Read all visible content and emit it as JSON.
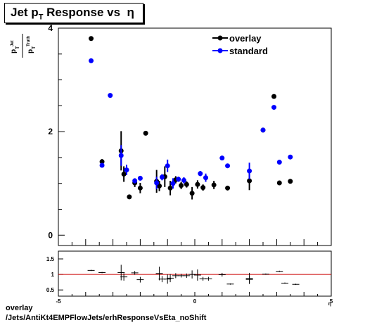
{
  "title": "Jet p_T Response vs η",
  "footer": {
    "line1": "overlay",
    "line2": "/Jets/AntiKt4EMPFlowJets/erhResponseVsEta_noShift"
  },
  "colors": {
    "overlay": "#000000",
    "standard": "#0000ff",
    "ratio_line": "#cc0000"
  },
  "chart_data": [
    {
      "type": "scatter",
      "ylabel": "p_T^Jet / p_T^Truth",
      "xlim": [
        -5,
        5
      ],
      "ylim": [
        -0.2,
        4.0
      ],
      "yticks": [
        0,
        2,
        4
      ],
      "ytick_labels": [
        "0",
        "2",
        "4"
      ],
      "legend_position": "top-right",
      "series": [
        {
          "name": "overlay",
          "color": "#000000",
          "x": [
            -3.8,
            -3.4,
            -2.7,
            -2.6,
            -2.4,
            -2.2,
            -2.0,
            -1.8,
            -1.4,
            -1.3,
            -1.1,
            -0.9,
            -0.7,
            -0.5,
            -0.3,
            -0.1,
            0.1,
            0.3,
            0.7,
            1.2,
            2.0,
            2.5,
            2.9,
            3.1,
            3.5
          ],
          "y": [
            3.8,
            1.42,
            1.63,
            1.18,
            0.74,
            1.01,
            0.91,
            1.97,
            1.04,
            0.95,
            1.13,
            0.91,
            1.07,
            0.96,
            0.98,
            0.81,
            0.98,
            0.92,
            0.97,
            0.91,
            1.05,
            2.03,
            2.68,
            1.01,
            1.04
          ],
          "yerr": [
            0.03,
            0.05,
            0.38,
            0.15,
            0.04,
            0.08,
            0.1,
            0.03,
            0.22,
            0.1,
            0.2,
            0.14,
            0.07,
            0.07,
            0.06,
            0.12,
            0.08,
            0.06,
            0.08,
            0.04,
            0.18,
            0.04,
            0.03,
            0.03,
            0.03
          ]
        },
        {
          "name": "standard",
          "color": "#0000ff",
          "x": [
            -3.8,
            -3.4,
            -3.1,
            -2.7,
            -2.5,
            -2.2,
            -2.0,
            -1.4,
            -1.2,
            -1.0,
            -0.8,
            -0.6,
            -0.4,
            0.2,
            0.4,
            1.0,
            1.2,
            2.0,
            2.5,
            2.9,
            3.1,
            3.5
          ],
          "y": [
            3.37,
            1.35,
            2.7,
            1.54,
            1.26,
            1.05,
            1.1,
            1.01,
            1.12,
            1.34,
            1.0,
            1.08,
            1.06,
            1.19,
            1.11,
            1.49,
            1.34,
            1.24,
            2.03,
            2.47,
            1.41,
            1.51
          ],
          "yerr": [
            0.03,
            0.04,
            0.03,
            0.2,
            0.1,
            0.05,
            0.04,
            0.12,
            0.06,
            0.12,
            0.1,
            0.05,
            0.06,
            0.05,
            0.08,
            0.03,
            0.03,
            0.16,
            0.04,
            0.04,
            0.03,
            0.03
          ]
        }
      ]
    },
    {
      "type": "scatter",
      "xlabel": "η",
      "xlim": [
        -5,
        5
      ],
      "ylim": [
        0.3,
        1.75
      ],
      "xticks": [
        -5,
        0,
        5
      ],
      "xtick_labels": [
        "-5",
        "0",
        "5"
      ],
      "yticks": [
        0.5,
        1,
        1.5
      ],
      "ytick_labels": [
        "0.5",
        "1",
        "1.5"
      ],
      "reference_line": 1,
      "series": [
        {
          "name": "",
          "color": "#000000",
          "x": [
            -3.8,
            -3.4,
            -2.7,
            -2.6,
            -2.2,
            -2.0,
            -1.3,
            -1.2,
            -1.0,
            -0.9,
            -0.7,
            -0.5,
            -0.3,
            -0.1,
            0.1,
            0.3,
            0.5,
            1.0,
            1.3,
            2.0,
            2.0,
            2.6,
            3.1,
            3.3,
            3.7
          ],
          "y": [
            1.13,
            1.06,
            1.06,
            0.92,
            1.05,
            0.83,
            1.03,
            0.85,
            0.85,
            0.88,
            0.96,
            0.96,
            0.96,
            1.0,
            0.98,
            0.86,
            0.86,
            0.99,
            0.69,
            0.87,
            0.84,
            1.01,
            1.1,
            0.72,
            0.68
          ],
          "yerr": [
            0.02,
            0.02,
            0.25,
            0.12,
            0.06,
            0.09,
            0.22,
            0.1,
            0.15,
            0.13,
            0.08,
            0.06,
            0.07,
            0.13,
            0.18,
            0.06,
            0.06,
            0.06,
            0.02,
            0.18,
            0.12,
            0.02,
            0.02,
            0.02,
            0.02
          ]
        }
      ]
    }
  ]
}
